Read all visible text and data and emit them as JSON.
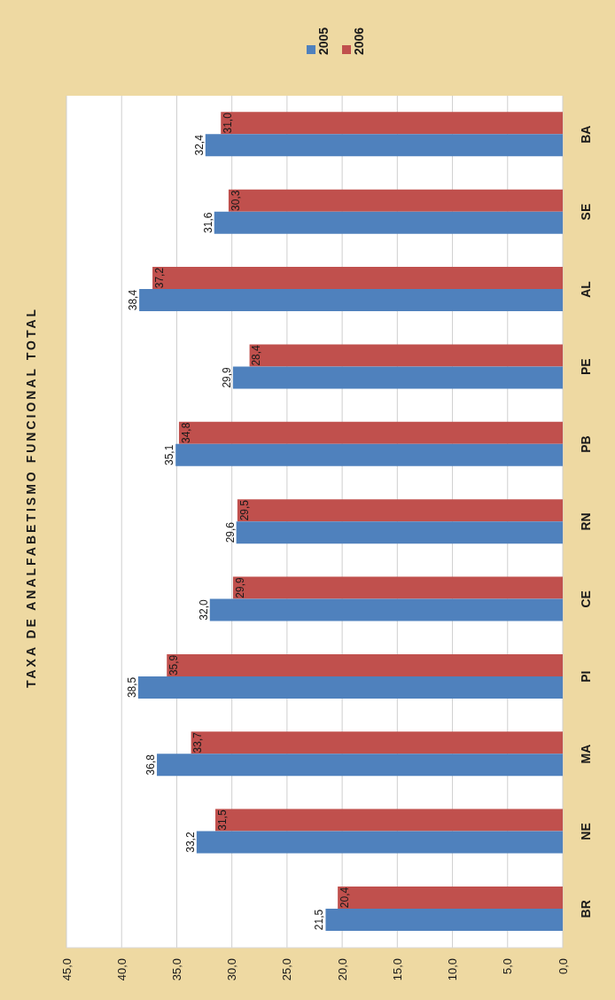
{
  "chart_data": {
    "type": "bar",
    "orientation": "horizontal",
    "title": "TAXA DE ANALFABETISMO FUNCIONAL TOTAL",
    "categories": [
      "BA",
      "SE",
      "AL",
      "PE",
      "PB",
      "RN",
      "CE",
      "PI",
      "MA",
      "NE",
      "BR"
    ],
    "series": [
      {
        "name": "2005",
        "color": "#4f81bd",
        "values": [
          32.4,
          31.6,
          38.4,
          29.9,
          35.1,
          29.6,
          32.0,
          38.5,
          36.8,
          33.2,
          21.5
        ],
        "value_labels": [
          "32,4",
          "31,6",
          "38,4",
          "29,9",
          "35,1",
          "29,6",
          "32,0",
          "38,5",
          "36,8",
          "33,2",
          "21,5"
        ]
      },
      {
        "name": "2006",
        "color": "#c0504d",
        "values": [
          31.0,
          30.3,
          37.2,
          28.4,
          34.8,
          29.5,
          29.9,
          35.9,
          33.7,
          31.5,
          20.4
        ],
        "value_labels": [
          "31,0",
          "30,3",
          "37,2",
          "28,4",
          "34,8",
          "29,5",
          "29,9",
          "35,9",
          "33,7",
          "31,5",
          "20,4"
        ]
      }
    ],
    "xlim": [
      45,
      0
    ],
    "xticks": [
      {
        "value": 45,
        "label": "45,0"
      },
      {
        "value": 40,
        "label": "40,0"
      },
      {
        "value": 35,
        "label": "35,0"
      },
      {
        "value": 30,
        "label": "30,0"
      },
      {
        "value": 25,
        "label": "25,0"
      },
      {
        "value": 20,
        "label": "20,0"
      },
      {
        "value": 15,
        "label": "15,0"
      },
      {
        "value": 10,
        "label": "10,0"
      },
      {
        "value": 5,
        "label": "5,0"
      },
      {
        "value": 0,
        "label": "0,0"
      }
    ],
    "grid": "x",
    "legend": "top"
  }
}
